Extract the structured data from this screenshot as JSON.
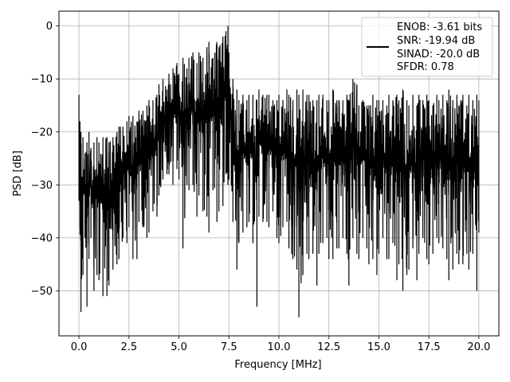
{
  "chart_data": {
    "type": "line",
    "title": "",
    "xlabel": "Frequency [MHz]",
    "ylabel": "PSD [dB]",
    "xlim": [
      -1.0,
      21.0
    ],
    "ylim": [
      -58.5,
      2.8
    ],
    "xticks": [
      0.0,
      2.5,
      5.0,
      7.5,
      10.0,
      12.5,
      15.0,
      17.5,
      20.0
    ],
    "xtick_labels": [
      "0.0",
      "2.5",
      "5.0",
      "7.5",
      "10.0",
      "12.5",
      "15.0",
      "17.5",
      "20.0"
    ],
    "yticks": [
      0,
      -10,
      -20,
      -30,
      -40,
      -50
    ],
    "ytick_labels": [
      "0",
      "−10",
      "−20",
      "−30",
      "−40",
      "−50"
    ],
    "grid": true,
    "legend_placement": "upper-right",
    "legend_lines": [
      "ENOB: -3.61 bits",
      "SNR: -19.94 dB",
      "SINAD: -20.0 dB",
      "SFDR: 0.78"
    ],
    "series": [
      {
        "color": "#000000",
        "x": [
          0.0,
          0.05,
          0.1,
          0.2,
          0.3,
          0.4,
          0.5,
          0.6,
          0.75,
          0.9,
          1.0,
          1.2,
          1.4,
          1.5,
          1.7,
          1.9,
          2.0,
          2.2,
          2.4,
          2.5,
          2.7,
          2.9,
          3.0,
          3.2,
          3.4,
          3.5,
          3.7,
          3.9,
          4.0,
          4.2,
          4.4,
          4.5,
          4.7,
          4.9,
          5.0,
          5.2,
          5.4,
          5.5,
          5.7,
          5.9,
          6.0,
          6.2,
          6.4,
          6.5,
          6.7,
          6.9,
          7.0,
          7.2,
          7.35,
          7.45,
          7.5,
          7.7,
          7.9,
          8.0,
          8.2,
          8.4,
          8.5,
          8.7,
          8.9,
          9.0,
          9.2,
          9.4,
          9.5,
          9.7,
          9.9,
          10.0,
          10.2,
          10.4,
          10.5,
          10.7,
          10.9,
          11.0,
          11.2,
          11.4,
          11.5,
          11.7,
          11.9,
          12.0,
          12.2,
          12.4,
          12.5,
          12.7,
          12.9,
          13.0,
          13.2,
          13.4,
          13.5,
          13.7,
          13.9,
          14.0,
          14.2,
          14.4,
          14.5,
          14.7,
          14.9,
          15.0,
          15.2,
          15.4,
          15.5,
          15.7,
          15.9,
          16.0,
          16.2,
          16.4,
          16.5,
          16.7,
          16.9,
          17.0,
          17.2,
          17.4,
          17.5,
          17.7,
          17.9,
          18.0,
          18.2,
          18.4,
          18.5,
          18.7,
          18.9,
          19.0,
          19.2,
          19.4,
          19.5,
          19.7,
          19.9,
          20.0
        ],
        "upper": [
          -13,
          -18,
          -20,
          -21,
          -24,
          -22,
          -20,
          -23,
          -22,
          -21,
          -22,
          -21,
          -21,
          -22,
          -21,
          -20,
          -19,
          -19,
          -18,
          -17,
          -17,
          -18,
          -16,
          -16,
          -15,
          -14,
          -14,
          -13,
          -11,
          -10,
          -12,
          -9,
          -8,
          -7,
          -9,
          -6,
          -8,
          -6,
          -5,
          -7,
          -5,
          -6,
          -4,
          -3,
          -6,
          -3,
          -4,
          -2,
          -1,
          0,
          -5,
          -10,
          -12,
          -14,
          -13,
          -14,
          -13,
          -13,
          -14,
          -12,
          -13,
          -13,
          -13,
          -14,
          -14,
          -13,
          -14,
          -12,
          -13,
          -14,
          -12,
          -13,
          -12,
          -13,
          -13,
          -14,
          -14,
          -13,
          -13,
          -14,
          -14,
          -12,
          -14,
          -14,
          -14,
          -13,
          -14,
          -10,
          -11,
          -15,
          -14,
          -15,
          -15,
          -13,
          -14,
          -14,
          -14,
          -15,
          -13,
          -14,
          -13,
          -14,
          -12,
          -14,
          -15,
          -13,
          -15,
          -13,
          -14,
          -13,
          -14,
          -15,
          -13,
          -14,
          -13,
          -14,
          -12,
          -14,
          -13,
          -15,
          -13,
          -15,
          -13,
          -14,
          -13,
          -14
        ],
        "lower": [
          -33,
          -38,
          -54,
          -47,
          -40,
          -53,
          -44,
          -40,
          -50,
          -47,
          -48,
          -51,
          -51,
          -49,
          -46,
          -45,
          -44,
          -40,
          -41,
          -38,
          -44,
          -44,
          -37,
          -38,
          -40,
          -39,
          -35,
          -36,
          -32,
          -29,
          -28,
          -28,
          -30,
          -27,
          -29,
          -42,
          -30,
          -31,
          -30,
          -36,
          -32,
          -35,
          -36,
          -39,
          -31,
          -37,
          -35,
          -34,
          -28,
          -30,
          -29,
          -37,
          -46,
          -41,
          -39,
          -38,
          -37,
          -41,
          -53,
          -36,
          -37,
          -37,
          -38,
          -35,
          -40,
          -41,
          -38,
          -37,
          -42,
          -44,
          -46,
          -55,
          -47,
          -43,
          -44,
          -43,
          -49,
          -43,
          -41,
          -40,
          -44,
          -44,
          -42,
          -42,
          -40,
          -43,
          -49,
          -40,
          -43,
          -44,
          -40,
          -42,
          -45,
          -44,
          -47,
          -43,
          -40,
          -44,
          -44,
          -41,
          -48,
          -45,
          -50,
          -47,
          -46,
          -42,
          -48,
          -43,
          -40,
          -44,
          -45,
          -43,
          -40,
          -41,
          -42,
          -44,
          -48,
          -46,
          -43,
          -45,
          -45,
          -43,
          -46,
          -43,
          -50,
          -39
        ]
      }
    ]
  }
}
